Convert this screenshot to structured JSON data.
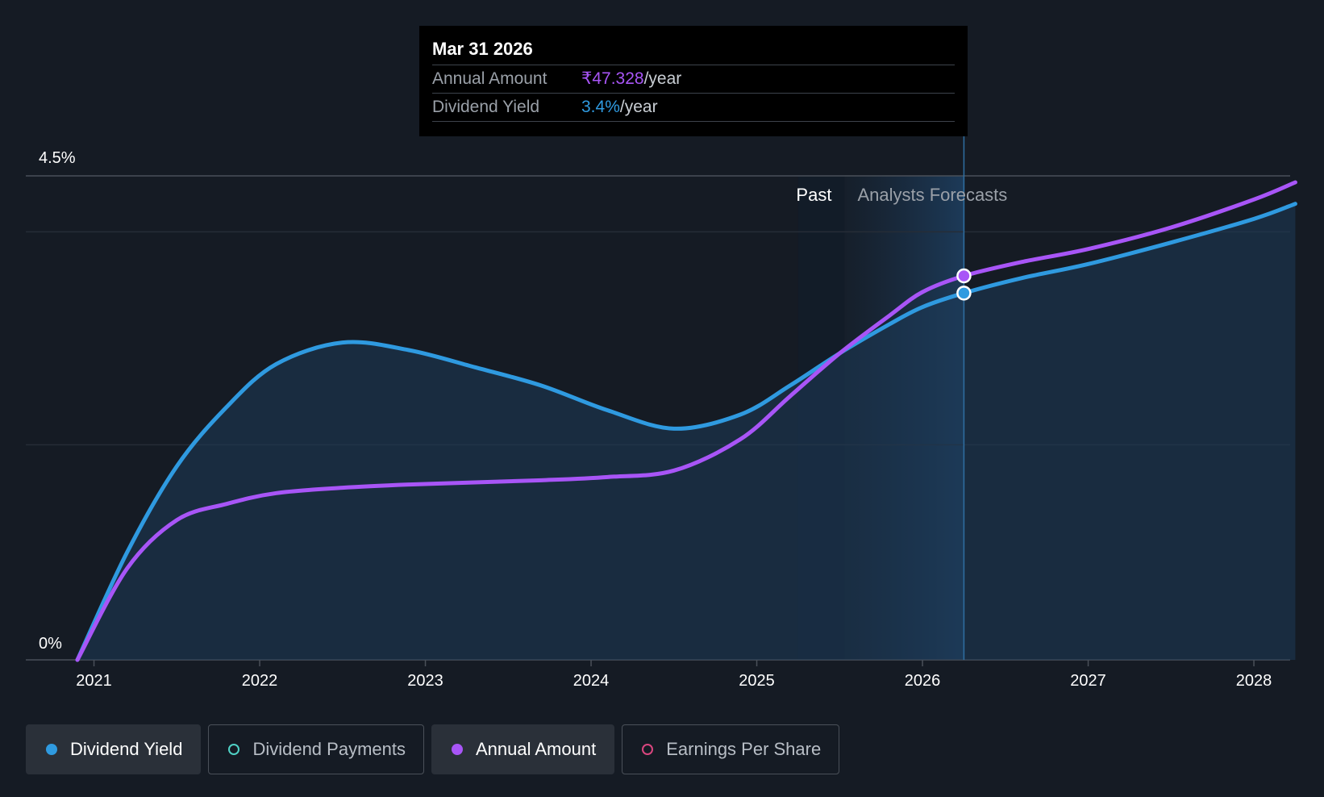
{
  "tooltip": {
    "date": "Mar 31 2026",
    "rows": [
      {
        "label": "Annual Amount",
        "value": "₹47.328",
        "unit": "/year"
      },
      {
        "label": "Dividend Yield",
        "value": "3.4%",
        "unit": "/year"
      }
    ]
  },
  "legend": [
    {
      "label": "Dividend Yield",
      "color": "#2f9ae0",
      "active": true,
      "filled": true
    },
    {
      "label": "Dividend Payments",
      "color": "#4fd1c5",
      "active": false,
      "filled": false
    },
    {
      "label": "Annual Amount",
      "color": "#a855f7",
      "active": true,
      "filled": true
    },
    {
      "label": "Earnings Per Share",
      "color": "#d9467f",
      "active": false,
      "filled": false
    }
  ],
  "chart_data": {
    "type": "line",
    "y_tick_labels": [
      "0%",
      "4.5%"
    ],
    "ylim": [
      0,
      4.5
    ],
    "x_tick_labels": [
      "2021",
      "2022",
      "2023",
      "2024",
      "2025",
      "2026",
      "2027",
      "2028"
    ],
    "xlim": [
      2020.9,
      2028.25
    ],
    "grid": true,
    "regions": {
      "past_label": "Past",
      "forecast_label": "Analysts Forecasts",
      "past_end": 2025.25,
      "forecast_start": 2025.53
    },
    "cursor_x": 2026.25,
    "series": [
      {
        "name": "Dividend Yield",
        "color": "#2f9ae0",
        "x": [
          2020.9,
          2021.2,
          2021.5,
          2021.8,
          2022.1,
          2022.5,
          2022.9,
          2023.3,
          2023.7,
          2024.1,
          2024.5,
          2024.9,
          2025.2,
          2025.5,
          2025.8,
          2026.0,
          2026.25,
          2026.6,
          2027.0,
          2027.5,
          2028.0,
          2028.25
        ],
        "y": [
          0.0,
          1.0,
          1.8,
          2.35,
          2.75,
          2.95,
          2.88,
          2.72,
          2.55,
          2.32,
          2.15,
          2.28,
          2.55,
          2.85,
          3.12,
          3.28,
          3.41,
          3.55,
          3.68,
          3.88,
          4.1,
          4.24
        ]
      },
      {
        "name": "Annual Amount",
        "color": "#a855f7",
        "x": [
          2020.9,
          2021.2,
          2021.5,
          2021.8,
          2022.1,
          2022.5,
          2022.9,
          2023.3,
          2023.7,
          2024.1,
          2024.5,
          2024.9,
          2025.2,
          2025.5,
          2025.8,
          2026.0,
          2026.25,
          2026.6,
          2027.0,
          2027.5,
          2028.0,
          2028.25
        ],
        "y": [
          0.0,
          0.85,
          1.3,
          1.45,
          1.55,
          1.6,
          1.63,
          1.65,
          1.67,
          1.7,
          1.76,
          2.05,
          2.45,
          2.85,
          3.2,
          3.42,
          3.57,
          3.7,
          3.82,
          4.02,
          4.28,
          4.44
        ]
      }
    ]
  }
}
